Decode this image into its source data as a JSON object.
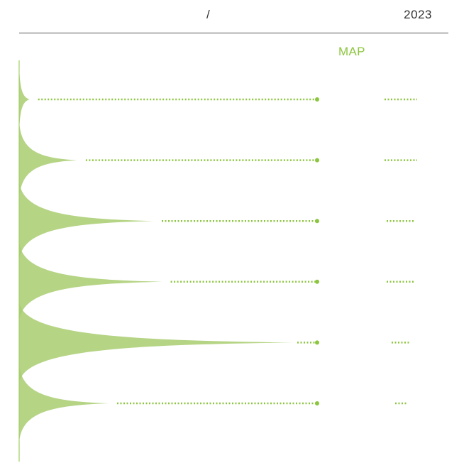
{
  "header": {
    "slash": "/",
    "year": "2023"
  },
  "chart_data": {
    "type": "area",
    "title": "",
    "column_label": "MAP",
    "xlabel": "",
    "ylabel": "",
    "accent_color": "#8cc63f",
    "fill_color": "#a8cd6e",
    "grid": false,
    "legend": "none",
    "xlim": [
      0,
      100
    ],
    "categories": [
      "",
      "",
      "",
      "",
      "",
      ""
    ],
    "values": [
      3.5,
      19.5,
      45,
      48,
      92,
      30
    ],
    "map_values": [
      "",
      "",
      "",
      "",
      "",
      ""
    ]
  }
}
